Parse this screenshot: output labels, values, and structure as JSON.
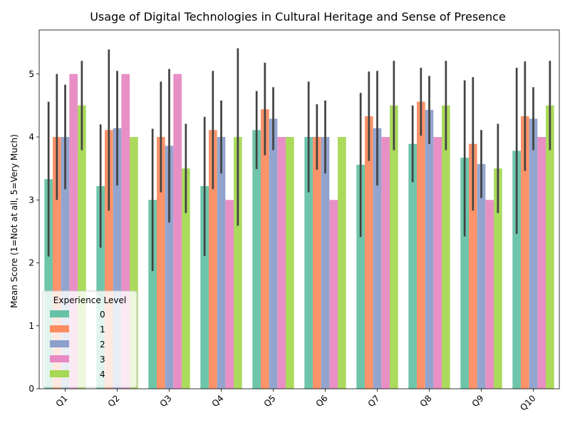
{
  "chart_data": {
    "type": "bar",
    "title": "Usage of Digital Technologies in Cultural Heritage and Sense of Presence",
    "xlabel": "",
    "ylabel": "Mean Score (1=Not at all, 5=Very Much)",
    "ylim": [
      0,
      5.7
    ],
    "yticks": [
      0,
      1,
      2,
      3,
      4,
      5
    ],
    "categories": [
      "Q1",
      "Q2",
      "Q3",
      "Q4",
      "Q5",
      "Q6",
      "Q7",
      "Q8",
      "Q9",
      "Q10"
    ],
    "legend_title": "Experience Level",
    "legend_position": "lower-left",
    "series": [
      {
        "name": "0",
        "color": "#66c2a5",
        "values": [
          3.33,
          3.22,
          3.0,
          3.22,
          4.11,
          4.0,
          3.56,
          3.89,
          3.67,
          3.78
        ],
        "err_low": [
          2.1,
          2.24,
          1.87,
          2.11,
          3.49,
          3.12,
          2.41,
          3.28,
          2.42,
          2.46
        ],
        "err_high": [
          4.56,
          4.2,
          4.13,
          4.32,
          4.73,
          4.88,
          4.7,
          4.5,
          4.9,
          5.1
        ]
      },
      {
        "name": "1",
        "color": "#fc8d62",
        "values": [
          4.0,
          4.11,
          4.0,
          4.11,
          4.44,
          4.0,
          4.33,
          4.56,
          3.89,
          4.33
        ],
        "err_low": [
          3.0,
          2.83,
          3.12,
          3.17,
          3.71,
          3.48,
          3.62,
          4.02,
          2.83,
          3.46
        ],
        "err_high": [
          5.0,
          5.39,
          4.88,
          5.05,
          5.18,
          4.52,
          5.04,
          5.1,
          4.95,
          5.2
        ]
      },
      {
        "name": "2",
        "color": "#8da0cb",
        "values": [
          4.0,
          4.14,
          3.86,
          4.0,
          4.29,
          4.0,
          4.14,
          4.43,
          3.57,
          4.29
        ],
        "err_low": [
          3.17,
          3.23,
          2.64,
          3.42,
          3.79,
          3.42,
          3.23,
          3.89,
          3.03,
          3.79
        ],
        "err_high": [
          4.83,
          5.05,
          5.08,
          4.58,
          4.79,
          4.58,
          5.05,
          4.97,
          4.11,
          4.79
        ]
      },
      {
        "name": "3",
        "color": "#e78ac3",
        "values": [
          5.0,
          5.0,
          5.0,
          3.0,
          4.0,
          3.0,
          4.0,
          4.0,
          3.0,
          4.0
        ],
        "err_low": [
          5.0,
          5.0,
          5.0,
          3.0,
          4.0,
          3.0,
          4.0,
          4.0,
          3.0,
          4.0
        ],
        "err_high": [
          5.0,
          5.0,
          5.0,
          3.0,
          4.0,
          3.0,
          4.0,
          4.0,
          3.0,
          4.0
        ]
      },
      {
        "name": "4",
        "color": "#a6d854",
        "values": [
          4.5,
          4.0,
          3.5,
          4.0,
          4.0,
          4.0,
          4.5,
          4.5,
          3.5,
          4.5
        ],
        "err_low": [
          3.79,
          4.0,
          2.79,
          2.59,
          4.0,
          4.0,
          3.79,
          3.79,
          2.79,
          3.79
        ],
        "err_high": [
          5.21,
          4.0,
          4.21,
          5.41,
          4.0,
          4.0,
          5.21,
          5.21,
          4.21,
          5.21
        ]
      }
    ]
  }
}
